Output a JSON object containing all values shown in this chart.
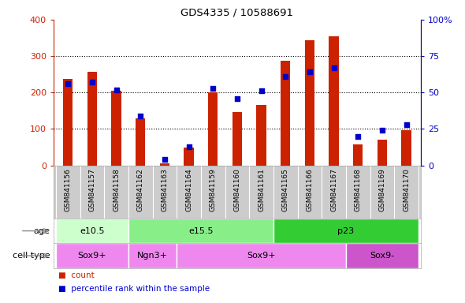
{
  "title": "GDS4335 / 10588691",
  "samples": [
    "GSM841156",
    "GSM841157",
    "GSM841158",
    "GSM841162",
    "GSM841163",
    "GSM841164",
    "GSM841159",
    "GSM841160",
    "GSM841161",
    "GSM841165",
    "GSM841166",
    "GSM841167",
    "GSM841168",
    "GSM841169",
    "GSM841170"
  ],
  "counts": [
    238,
    257,
    206,
    130,
    5,
    50,
    200,
    147,
    167,
    287,
    343,
    355,
    57,
    70,
    97
  ],
  "percentiles": [
    56,
    57,
    52,
    34,
    4,
    13,
    53,
    46,
    51,
    61,
    64,
    67,
    20,
    24,
    28
  ],
  "ylim_left": [
    0,
    400
  ],
  "ylim_right": [
    0,
    100
  ],
  "yticks_left": [
    0,
    100,
    200,
    300,
    400
  ],
  "yticks_right": [
    0,
    25,
    50,
    75,
    100
  ],
  "age_groups": [
    {
      "label": "e10.5",
      "start": 0,
      "end": 3,
      "color": "#ccffcc"
    },
    {
      "label": "e15.5",
      "start": 3,
      "end": 9,
      "color": "#88ee88"
    },
    {
      "label": "p23",
      "start": 9,
      "end": 15,
      "color": "#33cc33"
    }
  ],
  "cell_groups": [
    {
      "label": "Sox9+",
      "start": 0,
      "end": 3,
      "color": "#ee88ee"
    },
    {
      "label": "Ngn3+",
      "start": 3,
      "end": 5,
      "color": "#ee88ee"
    },
    {
      "label": "Sox9+",
      "start": 5,
      "end": 12,
      "color": "#ee88ee"
    },
    {
      "label": "Sox9-",
      "start": 12,
      "end": 15,
      "color": "#cc55cc"
    }
  ],
  "bar_color": "#cc2200",
  "dot_color": "#0000cc",
  "axis_color_left": "#cc2200",
  "axis_color_right": "#0000cc",
  "xticklabel_bg": "#cccccc",
  "border_color": "#aaaaaa"
}
